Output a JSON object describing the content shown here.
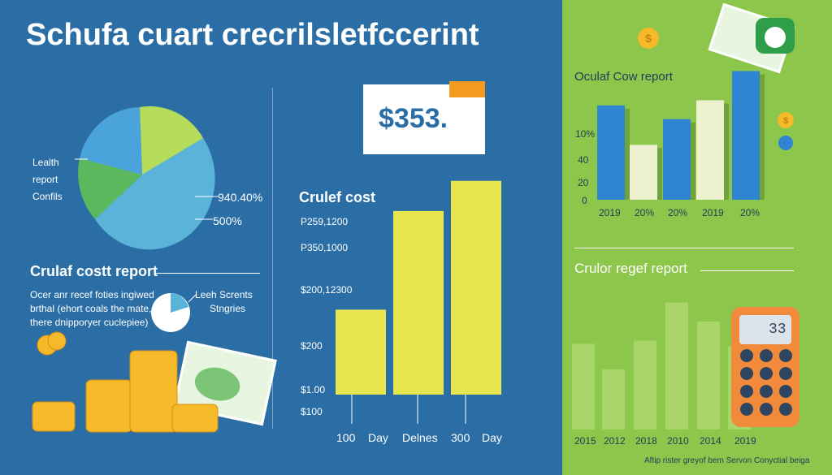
{
  "title": "Schufa cuart crecrilsletfccerint",
  "colors": {
    "blue_bg": "#2b6ea6",
    "green_bg": "#8cc64a",
    "pie_light_blue": "#5ab3d8",
    "pie_green": "#5cb85c",
    "pie_lime": "#b5dc5b",
    "bar_yellow": "#e7e651",
    "bar_blue": "#2f85d1",
    "bar_cream": "#eef1d0",
    "bar_lightgreen": "#a8d46a",
    "coin": "#f5b92a",
    "calculator": "#f28a3c"
  },
  "pie_left": {
    "labels": [
      "Lealth",
      "report",
      "Confils"
    ],
    "value_labels": [
      "940.40%",
      "500%"
    ]
  },
  "left_section": {
    "title": "Crulaf costt report",
    "text_lines": [
      "Ocer anr recef foties ingiwed",
      "brthal (ehort coals the mate,",
      "there dnipporyer cuclepiee)"
    ],
    "mini_pie_labels": [
      "Leeh Scrents",
      "Stngries"
    ]
  },
  "price": "$353.",
  "chart_data": [
    {
      "type": "bar",
      "title": "Crulef cost",
      "categories": [
        "100",
        "Day",
        "Delnes",
        "300",
        "Day"
      ],
      "values": [
        155,
        0,
        335,
        390,
        0
      ],
      "ytick_labels": [
        "P259,1200",
        "P350,1000",
        "$200,12300",
        "$200",
        "$1.00",
        "$100"
      ],
      "ylim": [
        0,
        400
      ]
    },
    {
      "type": "bar",
      "title": "Oculaf Cow report",
      "categories": [
        "2019",
        "20%",
        "20%",
        "2019",
        "20%"
      ],
      "values": [
        55,
        32,
        47,
        58,
        75
      ],
      "ytick_labels": [
        "10%",
        "40",
        "20",
        "0"
      ],
      "ylim": [
        0,
        80
      ]
    },
    {
      "type": "bar",
      "title": "Crulor regef report",
      "categories": [
        "2015",
        "2012",
        "2018",
        "2010",
        "2014",
        "2019"
      ],
      "values": [
        54,
        38,
        56,
        80,
        68,
        52
      ],
      "ylim": [
        0,
        90
      ]
    }
  ],
  "calculator": {
    "display": "33"
  },
  "footer": "Aftip rister greyof bem Servon Conyctial beiga"
}
